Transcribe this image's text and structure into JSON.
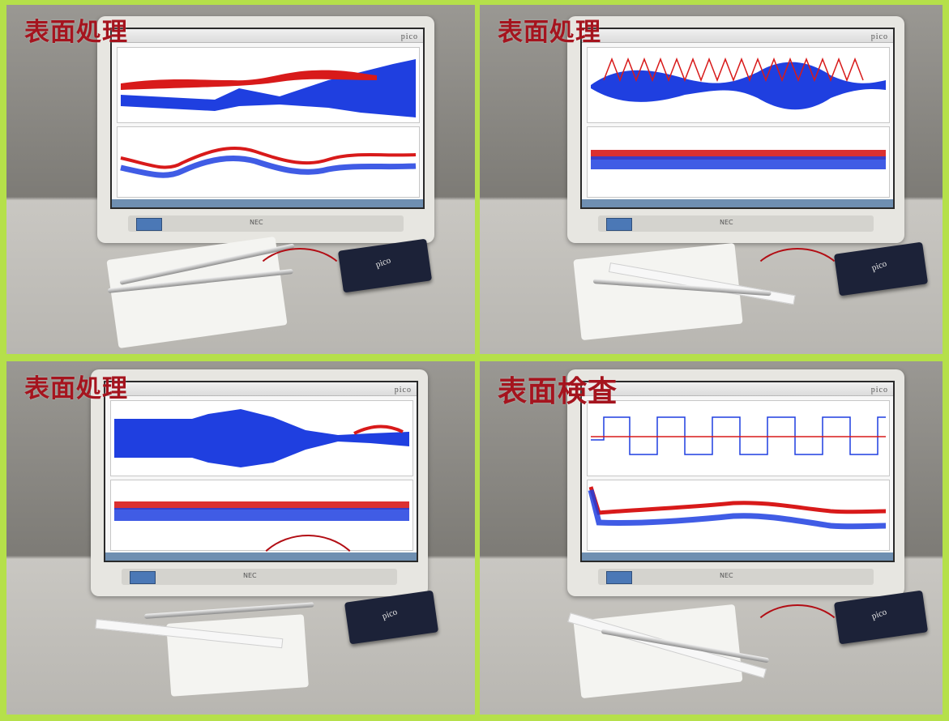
{
  "panels": [
    {
      "caption": "表面処理",
      "brand": "pico"
    },
    {
      "caption": "表面処理",
      "brand": "pico"
    },
    {
      "caption": "表面処理",
      "brand": "pico"
    },
    {
      "caption": "表面検査",
      "brand": "pico"
    }
  ],
  "monitor_label": "NEC",
  "device_label": "pico",
  "colors": {
    "border": "#b5e04a",
    "caption": "#a5141e",
    "trace_blue": "#1f3fe0",
    "trace_red": "#d81a1a"
  }
}
